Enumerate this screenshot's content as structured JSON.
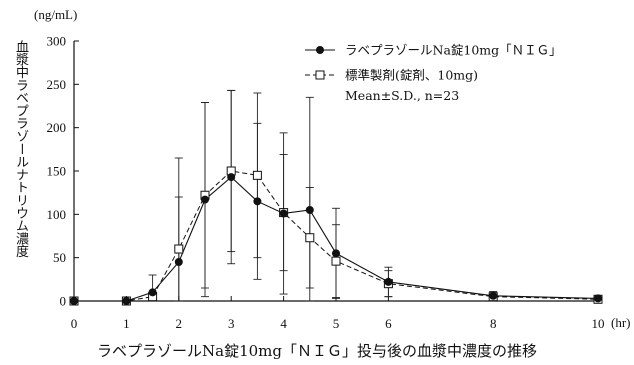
{
  "chart_data": {
    "type": "line",
    "title": "ラベプラゾールNa錠10mg「ＮＩＧ」投与後の血漿中濃度の推移",
    "ylabel": "血漿中ラベプラゾールナトリウム濃度",
    "yunit": "(ng/mL)",
    "xunit": "(hr)",
    "xlim": [
      0,
      10
    ],
    "ylim": [
      0,
      300
    ],
    "xticks": [
      0,
      1,
      2,
      3,
      4,
      5,
      6,
      8,
      10
    ],
    "yticks": [
      0,
      50,
      100,
      150,
      200,
      250,
      300
    ],
    "legend_position": "top-right",
    "legend_note": "Mean±S.D.,  n=23",
    "series": [
      {
        "name": "ラベプラゾールNa錠10mg「ＮＩＧ」",
        "marker": "filled-circle",
        "line": "solid",
        "x": [
          0,
          1,
          1.5,
          2,
          2.5,
          3,
          3.5,
          4,
          4.5,
          5,
          6,
          8,
          10
        ],
        "y": [
          0,
          0,
          10,
          45,
          117,
          143,
          115,
          101,
          105,
          55,
          22,
          6,
          3
        ],
        "sd": [
          0,
          0,
          20,
          120,
          112,
          100,
          90,
          93,
          130,
          52,
          17,
          5,
          3
        ]
      },
      {
        "name": "標準製剤(錠剤、10mg)",
        "marker": "open-square",
        "line": "dashed",
        "x": [
          0,
          1,
          1.5,
          2,
          2.5,
          3,
          3.5,
          4,
          4.5,
          5,
          6,
          8,
          10
        ],
        "y": [
          0,
          0,
          5,
          60,
          122,
          150,
          145,
          102,
          73,
          46,
          20,
          5,
          2
        ],
        "sd": [
          0,
          0,
          5,
          60,
          107,
          93,
          95,
          67,
          58,
          42,
          15,
          4,
          2
        ]
      }
    ]
  }
}
